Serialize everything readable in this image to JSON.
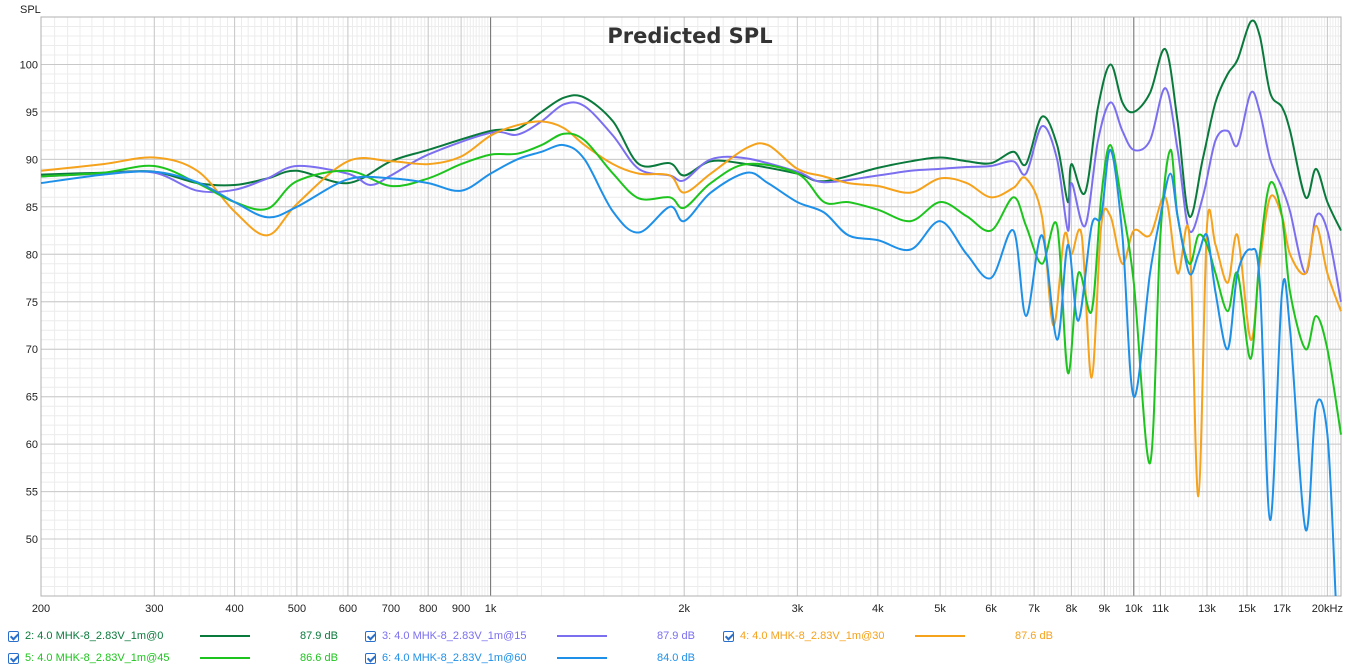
{
  "chart_data": {
    "type": "line",
    "title": "Predicted SPL",
    "ylabel": "SPL",
    "xlabel": "",
    "xscale": "log",
    "xlim": [
      200,
      21000
    ],
    "ylim": [
      44,
      105
    ],
    "grid": true,
    "x_ticks": [
      {
        "v": 200,
        "label": "200"
      },
      {
        "v": 300,
        "label": "300"
      },
      {
        "v": 400,
        "label": "400"
      },
      {
        "v": 500,
        "label": "500"
      },
      {
        "v": 600,
        "label": "600"
      },
      {
        "v": 700,
        "label": "700"
      },
      {
        "v": 800,
        "label": "800"
      },
      {
        "v": 900,
        "label": "900"
      },
      {
        "v": 1000,
        "label": "1k"
      },
      {
        "v": 2000,
        "label": "2k"
      },
      {
        "v": 3000,
        "label": "3k"
      },
      {
        "v": 4000,
        "label": "4k"
      },
      {
        "v": 5000,
        "label": "5k"
      },
      {
        "v": 6000,
        "label": "6k"
      },
      {
        "v": 7000,
        "label": "7k"
      },
      {
        "v": 8000,
        "label": "8k"
      },
      {
        "v": 9000,
        "label": "9k"
      },
      {
        "v": 10000,
        "label": "10k"
      },
      {
        "v": 11000,
        "label": "11k"
      },
      {
        "v": 13000,
        "label": "13k"
      },
      {
        "v": 15000,
        "label": "15k"
      },
      {
        "v": 17000,
        "label": "17k"
      },
      {
        "v": 20000,
        "label": "20kHz"
      }
    ],
    "y_ticks": [
      50,
      55,
      60,
      65,
      70,
      75,
      80,
      85,
      90,
      95,
      100
    ],
    "series": [
      {
        "name": "2: 4.0 MHK-8_2.83V_1m@0",
        "level": "87.9 dB",
        "color": "#0a7a3c",
        "points": [
          [
            200,
            88.4
          ],
          [
            250,
            88.6
          ],
          [
            300,
            88.7
          ],
          [
            350,
            87.5
          ],
          [
            400,
            87.3
          ],
          [
            450,
            88
          ],
          [
            500,
            88.8
          ],
          [
            600,
            87.5
          ],
          [
            700,
            89.8
          ],
          [
            800,
            91
          ],
          [
            1000,
            93
          ],
          [
            1100,
            93.2
          ],
          [
            1200,
            95
          ],
          [
            1300,
            96.5
          ],
          [
            1400,
            96.5
          ],
          [
            1550,
            94
          ],
          [
            1700,
            89.5
          ],
          [
            1900,
            89.6
          ],
          [
            2000,
            88.3
          ],
          [
            2200,
            89.8
          ],
          [
            2500,
            89.5
          ],
          [
            3000,
            88.5
          ],
          [
            3300,
            87.7
          ],
          [
            4000,
            89.1
          ],
          [
            4500,
            89.8
          ],
          [
            5000,
            90.2
          ],
          [
            5500,
            89.8
          ],
          [
            6000,
            89.6
          ],
          [
            6500,
            90.8
          ],
          [
            6800,
            89.5
          ],
          [
            7200,
            94.5
          ],
          [
            7600,
            91.5
          ],
          [
            7900,
            85.5
          ],
          [
            8000,
            89.5
          ],
          [
            8400,
            86.5
          ],
          [
            8800,
            95.5
          ],
          [
            9200,
            100
          ],
          [
            9600,
            96
          ],
          [
            10000,
            95
          ],
          [
            10600,
            97
          ],
          [
            11200,
            101.6
          ],
          [
            11700,
            94
          ],
          [
            12200,
            84
          ],
          [
            12800,
            90
          ],
          [
            13400,
            96
          ],
          [
            14000,
            99
          ],
          [
            14500,
            100.5
          ],
          [
            15200,
            104.5
          ],
          [
            15700,
            103
          ],
          [
            16300,
            97
          ],
          [
            17000,
            95.5
          ],
          [
            17500,
            93
          ],
          [
            18500,
            86
          ],
          [
            19200,
            89
          ],
          [
            20000,
            85.5
          ],
          [
            21000,
            82.5
          ]
        ]
      },
      {
        "name": "3: 4.0 MHK-8_2.83V_1m@15",
        "level": "87.9 dB",
        "color": "#7b6ff0",
        "points": [
          [
            200,
            88.2
          ],
          [
            250,
            88.5
          ],
          [
            300,
            88.6
          ],
          [
            350,
            86.7
          ],
          [
            400,
            86.8
          ],
          [
            450,
            88
          ],
          [
            500,
            89.3
          ],
          [
            600,
            88.5
          ],
          [
            650,
            87.3
          ],
          [
            700,
            88.3
          ],
          [
            800,
            90.5
          ],
          [
            1000,
            92.8
          ],
          [
            1100,
            92.6
          ],
          [
            1200,
            94
          ],
          [
            1300,
            95.8
          ],
          [
            1400,
            95.6
          ],
          [
            1550,
            92.5
          ],
          [
            1700,
            89
          ],
          [
            1900,
            88.3
          ],
          [
            2000,
            87.8
          ],
          [
            2200,
            90
          ],
          [
            2500,
            90.1
          ],
          [
            3000,
            88.7
          ],
          [
            3300,
            87.6
          ],
          [
            4000,
            88.3
          ],
          [
            4500,
            88.8
          ],
          [
            5000,
            89
          ],
          [
            5500,
            89.2
          ],
          [
            6000,
            89.3
          ],
          [
            6500,
            89.8
          ],
          [
            6800,
            88.5
          ],
          [
            7200,
            93.5
          ],
          [
            7600,
            90
          ],
          [
            7900,
            82.5
          ],
          [
            8000,
            87.5
          ],
          [
            8400,
            83
          ],
          [
            8800,
            92
          ],
          [
            9200,
            96
          ],
          [
            9600,
            93
          ],
          [
            10000,
            91
          ],
          [
            10600,
            92
          ],
          [
            11200,
            97.5
          ],
          [
            11700,
            91
          ],
          [
            12200,
            82.5
          ],
          [
            12800,
            86
          ],
          [
            13400,
            92
          ],
          [
            14000,
            93
          ],
          [
            14500,
            91.5
          ],
          [
            15200,
            97
          ],
          [
            15700,
            95
          ],
          [
            16300,
            90
          ],
          [
            17000,
            87
          ],
          [
            17500,
            84.5
          ],
          [
            18500,
            78
          ],
          [
            19200,
            84
          ],
          [
            20000,
            82.5
          ],
          [
            21000,
            75
          ]
        ]
      },
      {
        "name": "4: 4.0 MHK-8_2.83V_1m@30",
        "level": "87.6 dB",
        "color": "#f5a21c",
        "points": [
          [
            200,
            88.8
          ],
          [
            250,
            89.5
          ],
          [
            300,
            90.2
          ],
          [
            350,
            88.8
          ],
          [
            400,
            84.5
          ],
          [
            450,
            82
          ],
          [
            500,
            85.3
          ],
          [
            600,
            89.8
          ],
          [
            700,
            89.8
          ],
          [
            800,
            89.5
          ],
          [
            900,
            90.3
          ],
          [
            1000,
            92.5
          ],
          [
            1100,
            93.6
          ],
          [
            1200,
            94
          ],
          [
            1300,
            93.3
          ],
          [
            1400,
            91.5
          ],
          [
            1550,
            89.5
          ],
          [
            1700,
            88.5
          ],
          [
            1900,
            88.3
          ],
          [
            2000,
            86.5
          ],
          [
            2200,
            88.5
          ],
          [
            2500,
            91.2
          ],
          [
            2700,
            91.5
          ],
          [
            3000,
            89
          ],
          [
            3300,
            88.2
          ],
          [
            3600,
            87.5
          ],
          [
            4000,
            87.2
          ],
          [
            4500,
            86.5
          ],
          [
            5000,
            88
          ],
          [
            5500,
            87.5
          ],
          [
            6000,
            86
          ],
          [
            6500,
            87
          ],
          [
            6800,
            88
          ],
          [
            7200,
            84
          ],
          [
            7500,
            72.5
          ],
          [
            7800,
            82
          ],
          [
            8000,
            80
          ],
          [
            8300,
            82
          ],
          [
            8600,
            67
          ],
          [
            8900,
            83
          ],
          [
            9200,
            84
          ],
          [
            9600,
            79
          ],
          [
            10000,
            82.5
          ],
          [
            10600,
            82
          ],
          [
            11200,
            86
          ],
          [
            11700,
            78
          ],
          [
            12200,
            82
          ],
          [
            12600,
            54.5
          ],
          [
            13000,
            83
          ],
          [
            13400,
            81
          ],
          [
            14000,
            77
          ],
          [
            14500,
            82
          ],
          [
            15200,
            71
          ],
          [
            15700,
            79
          ],
          [
            16300,
            86
          ],
          [
            17000,
            84
          ],
          [
            17500,
            80
          ],
          [
            18500,
            78
          ],
          [
            19200,
            83
          ],
          [
            20000,
            78
          ],
          [
            21000,
            74
          ]
        ]
      },
      {
        "name": "5: 4.0 MHK-8_2.83V_1m@45",
        "level": "86.6 dB",
        "color": "#1ec41e",
        "points": [
          [
            200,
            88.2
          ],
          [
            250,
            88.6
          ],
          [
            300,
            89.3
          ],
          [
            350,
            87.5
          ],
          [
            400,
            85.5
          ],
          [
            450,
            84.8
          ],
          [
            500,
            87.7
          ],
          [
            600,
            88.8
          ],
          [
            700,
            87.2
          ],
          [
            800,
            88
          ],
          [
            900,
            89.5
          ],
          [
            1000,
            90.5
          ],
          [
            1100,
            90.6
          ],
          [
            1200,
            91.5
          ],
          [
            1300,
            92.7
          ],
          [
            1400,
            92
          ],
          [
            1550,
            88.5
          ],
          [
            1700,
            85.9
          ],
          [
            1900,
            86
          ],
          [
            2000,
            84.9
          ],
          [
            2200,
            87.5
          ],
          [
            2500,
            89.5
          ],
          [
            3000,
            88.5
          ],
          [
            3300,
            85.5
          ],
          [
            3600,
            85.5
          ],
          [
            4000,
            84.7
          ],
          [
            4500,
            83.5
          ],
          [
            5000,
            85.5
          ],
          [
            5500,
            84
          ],
          [
            6000,
            82.5
          ],
          [
            6500,
            86
          ],
          [
            6800,
            83
          ],
          [
            7200,
            79
          ],
          [
            7600,
            83
          ],
          [
            7900,
            67.5
          ],
          [
            8200,
            78
          ],
          [
            8600,
            74
          ],
          [
            8900,
            86
          ],
          [
            9200,
            91.5
          ],
          [
            9600,
            85
          ],
          [
            10000,
            77
          ],
          [
            10600,
            58
          ],
          [
            11000,
            82
          ],
          [
            11400,
            91
          ],
          [
            11700,
            84
          ],
          [
            12200,
            79
          ],
          [
            12600,
            82
          ],
          [
            13000,
            81
          ],
          [
            13400,
            78
          ],
          [
            14000,
            74
          ],
          [
            14500,
            78
          ],
          [
            15200,
            69
          ],
          [
            15700,
            80
          ],
          [
            16300,
            87.5
          ],
          [
            17000,
            84
          ],
          [
            17500,
            76
          ],
          [
            18500,
            70
          ],
          [
            19200,
            73.5
          ],
          [
            20000,
            70
          ],
          [
            21000,
            61
          ]
        ]
      },
      {
        "name": "6: 4.0 MHK-8_2.83V_1m@60",
        "level": "84.0 dB",
        "color": "#1e90e8",
        "points": [
          [
            200,
            87.5
          ],
          [
            250,
            88.4
          ],
          [
            300,
            88.7
          ],
          [
            350,
            87.6
          ],
          [
            400,
            85.5
          ],
          [
            450,
            83.9
          ],
          [
            500,
            85
          ],
          [
            600,
            87.9
          ],
          [
            700,
            88
          ],
          [
            800,
            87.5
          ],
          [
            900,
            86.7
          ],
          [
            1000,
            88.5
          ],
          [
            1100,
            90
          ],
          [
            1200,
            90.8
          ],
          [
            1300,
            91.5
          ],
          [
            1400,
            90
          ],
          [
            1550,
            84.5
          ],
          [
            1700,
            82.3
          ],
          [
            1900,
            85
          ],
          [
            2000,
            83.5
          ],
          [
            2200,
            86.5
          ],
          [
            2500,
            88.6
          ],
          [
            2700,
            87.5
          ],
          [
            3000,
            85.5
          ],
          [
            3300,
            84.4
          ],
          [
            3600,
            82
          ],
          [
            4000,
            81.5
          ],
          [
            4500,
            80.5
          ],
          [
            5000,
            83.5
          ],
          [
            5500,
            80
          ],
          [
            6000,
            77.5
          ],
          [
            6500,
            82.5
          ],
          [
            6800,
            73.5
          ],
          [
            7200,
            82
          ],
          [
            7600,
            71
          ],
          [
            7900,
            81
          ],
          [
            8200,
            73
          ],
          [
            8600,
            83
          ],
          [
            8900,
            84
          ],
          [
            9200,
            91
          ],
          [
            9600,
            82
          ],
          [
            10000,
            65
          ],
          [
            10600,
            78
          ],
          [
            11000,
            84
          ],
          [
            11400,
            88.5
          ],
          [
            11700,
            84
          ],
          [
            12200,
            78
          ],
          [
            12600,
            80
          ],
          [
            13000,
            82
          ],
          [
            13400,
            76
          ],
          [
            14000,
            70
          ],
          [
            14500,
            78
          ],
          [
            15200,
            80.5
          ],
          [
            15700,
            77
          ],
          [
            16300,
            52
          ],
          [
            17000,
            76
          ],
          [
            17500,
            72
          ],
          [
            18500,
            51
          ],
          [
            19200,
            64
          ],
          [
            20000,
            61
          ],
          [
            20600,
            44
          ]
        ]
      }
    ]
  }
}
